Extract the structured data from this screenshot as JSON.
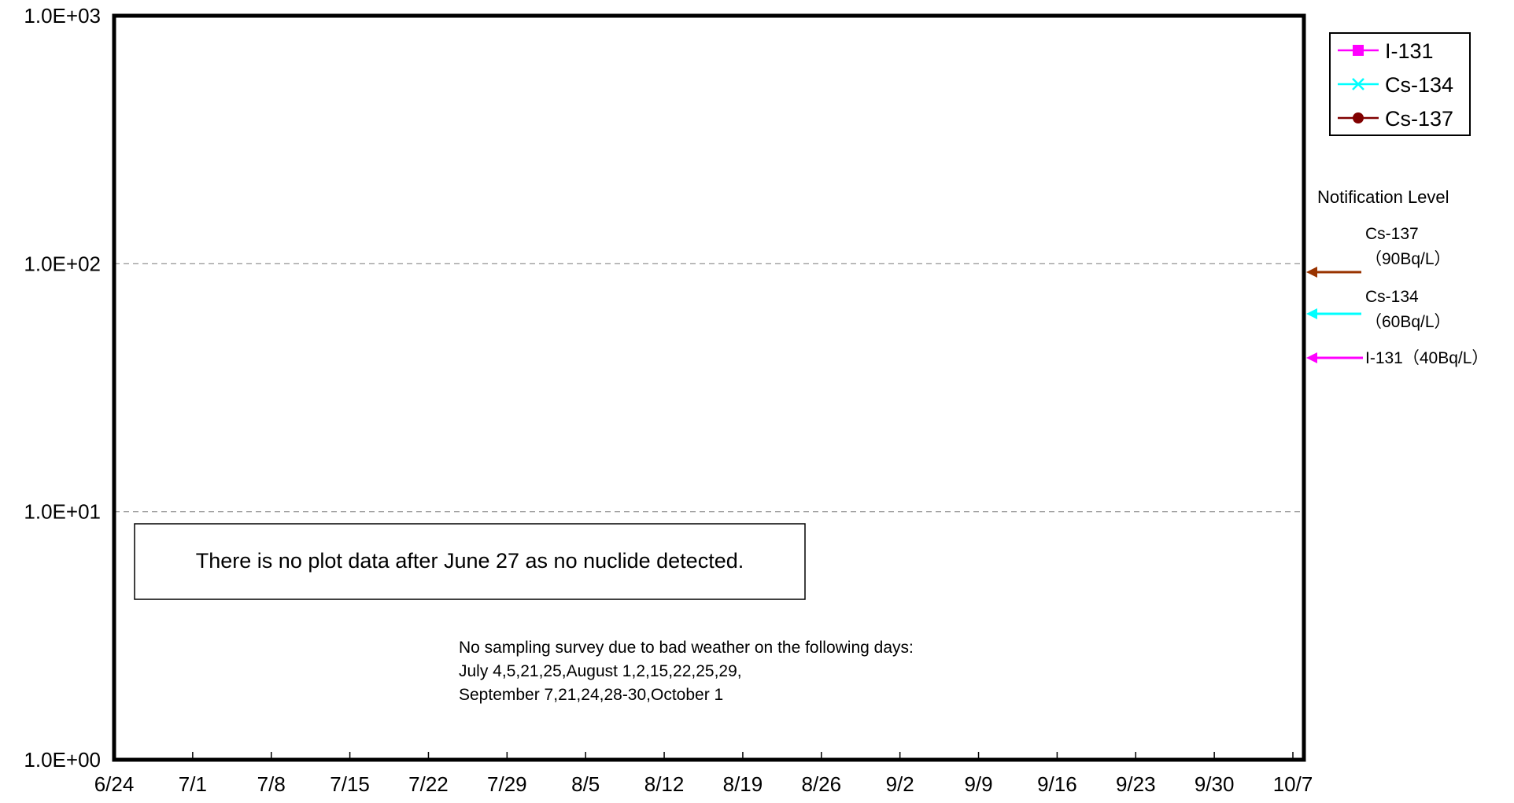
{
  "chart_data": {
    "type": "line",
    "title": "",
    "xlabel": "",
    "ylabel": "",
    "y_scale": "log",
    "ylim": [
      1,
      1000
    ],
    "y_ticks": [
      {
        "value": 1,
        "label": "1.0E+00"
      },
      {
        "value": 10,
        "label": "1.0E+01"
      },
      {
        "value": 100,
        "label": "1.0E+02"
      },
      {
        "value": 1000,
        "label": "1.0E+03"
      }
    ],
    "x_ticks": [
      "6/24",
      "7/1",
      "7/8",
      "7/15",
      "7/22",
      "7/29",
      "8/5",
      "8/12",
      "8/19",
      "8/26",
      "9/2",
      "9/9",
      "9/16",
      "9/23",
      "9/30",
      "10/7"
    ],
    "xlim": [
      "6/24",
      "10/7"
    ],
    "grid": {
      "major_y_dashed": true,
      "x": false
    },
    "legend_position": "top-right",
    "series": [
      {
        "name": "I-131",
        "color": "#ff00ff",
        "marker": "square",
        "values": []
      },
      {
        "name": "Cs-134",
        "color": "#00ffff",
        "marker": "x",
        "values": []
      },
      {
        "name": "Cs-137",
        "color": "#800000",
        "marker": "circle",
        "values": []
      }
    ],
    "notification": {
      "title": "Notification Level",
      "levels": [
        {
          "nuclide": "Cs-137",
          "value": 90,
          "label_line1": "Cs-137",
          "label_line2": "（90Bq/L）",
          "color": "#993300"
        },
        {
          "nuclide": "Cs-134",
          "value": 60,
          "label_line1": "Cs-134",
          "label_line2": "（60Bq/L）",
          "color": "#00ffff"
        },
        {
          "nuclide": "I-131",
          "value": 40,
          "label_line1": "I-131（40Bq/L）",
          "label_line2": "",
          "color": "#ff00ff"
        }
      ]
    },
    "annotations": {
      "boxed_note": "There is no plot data after June 27 as no nuclide detected.",
      "sampling_note": [
        "No sampling survey due to bad weather on the following days:",
        "July 4,5,21,25,August 1,2,15,22,25,29,",
        "September 7,21,24,28-30,October 1"
      ]
    }
  }
}
